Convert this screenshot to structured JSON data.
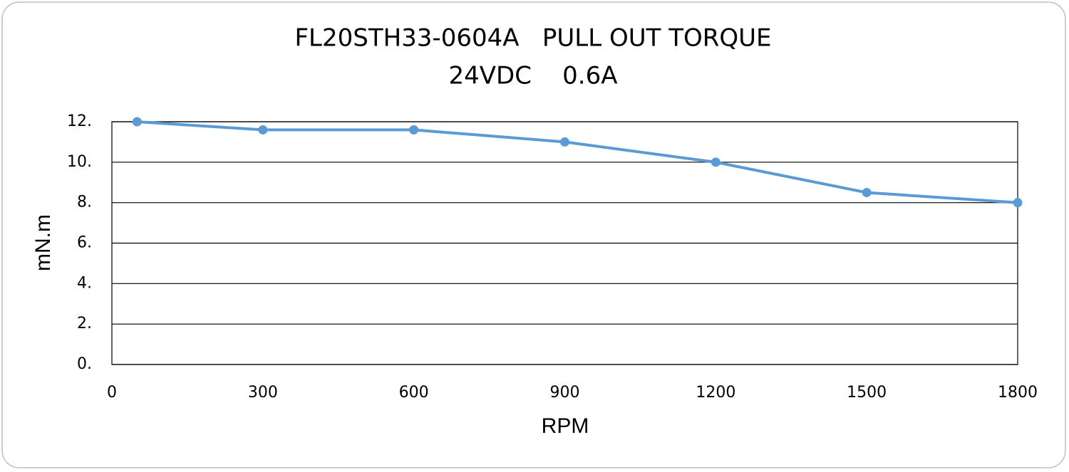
{
  "chart_data": {
    "type": "line",
    "title": "FL20STH33-0604A   PULL OUT TORQUE",
    "subtitle": "24VDC    0.6A",
    "x_label": "RPM",
    "y_label": "mN.m",
    "x": [
      50,
      300,
      600,
      900,
      1200,
      1500,
      1800
    ],
    "series": [
      {
        "color": "#5b9bd5",
        "values": [
          12,
          11.6,
          11.6,
          11,
          10,
          8.5,
          8
        ]
      }
    ],
    "xlim": [
      0,
      1800
    ],
    "xticks": [
      0,
      300,
      600,
      900,
      1200,
      1500,
      1800
    ],
    "ylim": [
      0,
      12
    ],
    "yticks": [
      {
        "value": 0,
        "label": "0."
      },
      {
        "value": 2,
        "label": "2."
      },
      {
        "value": 4,
        "label": "4."
      },
      {
        "value": 6,
        "label": "6."
      },
      {
        "value": 8,
        "label": "8."
      },
      {
        "value": 10,
        "label": "10."
      },
      {
        "value": 12,
        "label": "12."
      }
    ],
    "grid": true
  }
}
